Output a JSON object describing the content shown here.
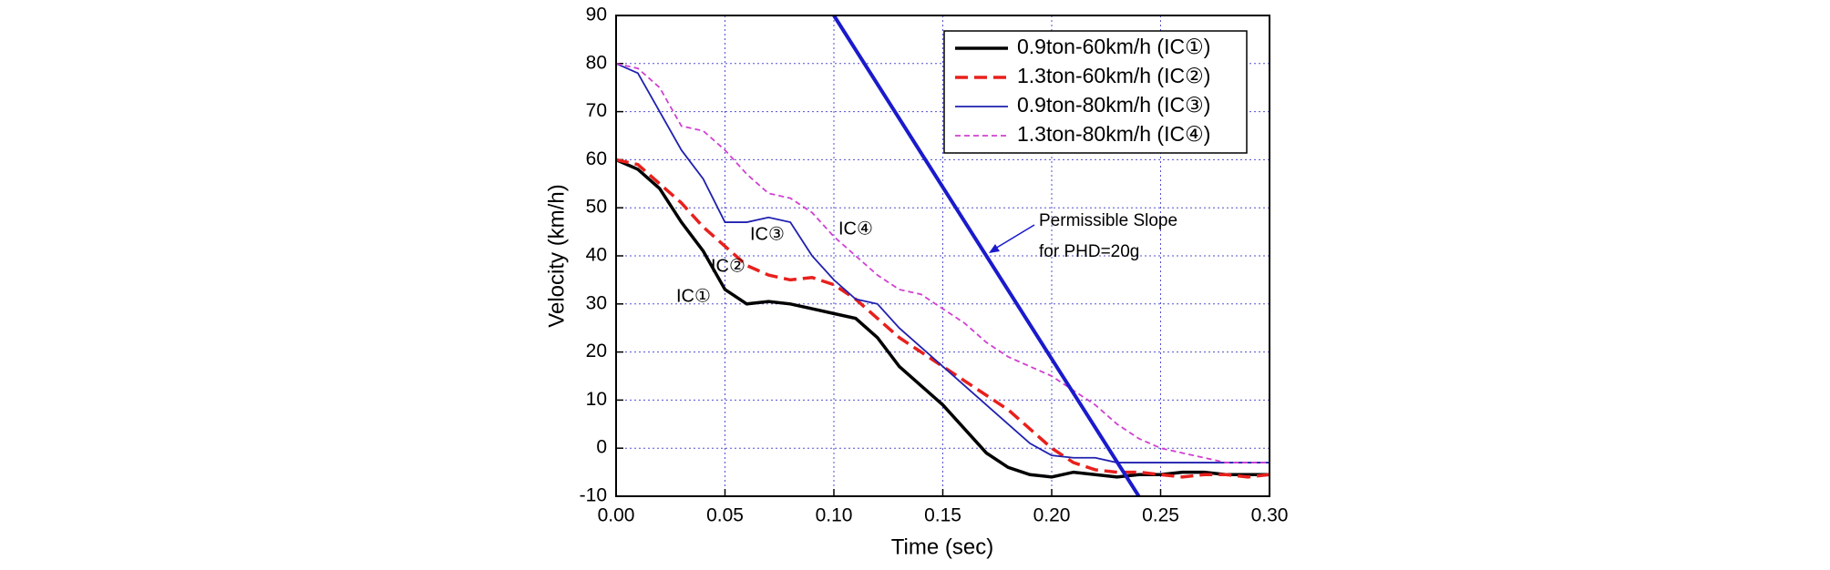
{
  "chart_data": {
    "type": "line",
    "xlabel": "Time (sec)",
    "ylabel": "Velocity (km/h)",
    "x": [
      0,
      0.01,
      0.02,
      0.03,
      0.04,
      0.05,
      0.06,
      0.07,
      0.08,
      0.09,
      0.1,
      0.11,
      0.12,
      0.13,
      0.14,
      0.15,
      0.16,
      0.17,
      0.18,
      0.19,
      0.2,
      0.21,
      0.22,
      0.23,
      0.24,
      0.25,
      0.26,
      0.27,
      0.28,
      0.29,
      0.3
    ],
    "series": [
      {
        "name": "0.9ton-60km/h (IC①)",
        "color": "#000000",
        "dash": "solid",
        "width": 3.5,
        "values": [
          60,
          58,
          54,
          47,
          41,
          33,
          30,
          30.5,
          30,
          29,
          28,
          27,
          23,
          17,
          13,
          9,
          4,
          -1,
          -4,
          -5.5,
          -6,
          -5,
          -5.5,
          -6,
          -5.5,
          -5.5,
          -5,
          -5,
          -5.5,
          -5.5,
          -5.5
        ]
      },
      {
        "name": "1.3ton-60km/h (IC②)",
        "color": "#e8201c",
        "dash": "dashed",
        "width": 3.5,
        "values": [
          60,
          59,
          55,
          51,
          46,
          42,
          38,
          36,
          35,
          35.5,
          34,
          31,
          27,
          23,
          20,
          17,
          14,
          11,
          8,
          4,
          0,
          -3,
          -4.5,
          -5,
          -5,
          -5.5,
          -6,
          -5.5,
          -5.5,
          -6,
          -5.5
        ]
      },
      {
        "name": "0.9ton-80km/h (IC③)",
        "color": "#2020b0",
        "dash": "solid",
        "width": 1.8,
        "values": [
          80,
          78,
          70,
          62,
          56,
          47,
          47,
          48,
          47,
          40,
          35,
          31,
          30,
          25,
          21,
          17,
          13,
          9,
          5,
          1,
          -1.5,
          -2,
          -2,
          -3,
          -3,
          -3,
          -3,
          -3,
          -3,
          -3,
          -3
        ]
      },
      {
        "name": "1.3ton-80km/h (IC④)",
        "color": "#d040d0",
        "dash": "short",
        "width": 1.8,
        "values": [
          80,
          79,
          75,
          67,
          66,
          62,
          57,
          53,
          52,
          49,
          44,
          40,
          36,
          33,
          32,
          29,
          26,
          22,
          19,
          17,
          15,
          12,
          9,
          5,
          2,
          0,
          -1,
          -2,
          -3,
          -3,
          -3
        ]
      }
    ],
    "reference_line": {
      "x": [
        0.1,
        0.24
      ],
      "values": [
        90,
        -10
      ],
      "color": "#1a1acc"
    },
    "annotations": [
      "Permissible Slope",
      "for PHD=20g",
      "IC①",
      "IC②",
      "IC③",
      "IC④"
    ],
    "xlim": [
      0,
      0.3
    ],
    "xticks": [
      {
        "value": 0,
        "label": "0.00"
      },
      {
        "value": 0.05,
        "label": "0.05"
      },
      {
        "value": 0.1,
        "label": "0.10"
      },
      {
        "value": 0.15,
        "label": "0.15"
      },
      {
        "value": 0.2,
        "label": "0.20"
      },
      {
        "value": 0.25,
        "label": "0.25"
      },
      {
        "value": 0.3,
        "label": "0.30"
      }
    ],
    "ylim": [
      -10,
      90
    ],
    "yticks": [
      -10,
      0,
      10,
      20,
      30,
      40,
      50,
      60,
      70,
      80,
      90
    ],
    "grid": true,
    "legend": "upper right"
  }
}
